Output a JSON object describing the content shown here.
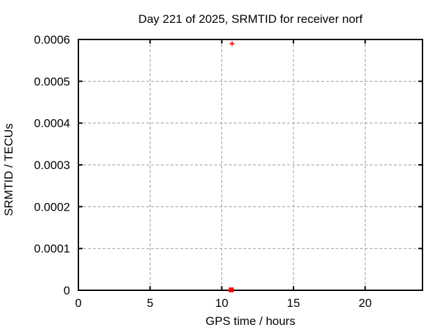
{
  "figure": {
    "background_color": "#ffffff"
  },
  "chart_data": {
    "type": "scatter",
    "title": "Day 221 of 2025, SRMTID for receiver norf",
    "xlabel": "GPS time / hours",
    "ylabel": "SRMTID / TECUs",
    "xlim": [
      0,
      24
    ],
    "ylim": [
      0,
      0.0006
    ],
    "xticks": {
      "values": [
        0,
        5,
        10,
        15,
        20
      ],
      "labels": [
        "0",
        "5",
        "10",
        "15",
        "20"
      ]
    },
    "yticks": {
      "values": [
        0,
        0.0001,
        0.0002,
        0.0003,
        0.0004,
        0.0005,
        0.0006
      ],
      "labels": [
        "0",
        "0.0001",
        "0.0002",
        "0.0003",
        "0.0004",
        "0.0005",
        "0.0006"
      ]
    },
    "grid": true,
    "grid_style": "dashed",
    "legend": "none",
    "series": [
      {
        "name": "series 1",
        "marker": "plus",
        "color": "#ff0000",
        "points": [
          {
            "x": 10.72,
            "y": 0.00059
          }
        ]
      },
      {
        "name": "series 2",
        "marker": "filled-square",
        "color": "#ff0000",
        "points": [
          {
            "x": 10.66,
            "y": 1e-06
          }
        ]
      }
    ],
    "colors": {
      "grid": "#999999",
      "axis": "#000000",
      "text": "#000000",
      "marker": "#ff0000"
    }
  }
}
